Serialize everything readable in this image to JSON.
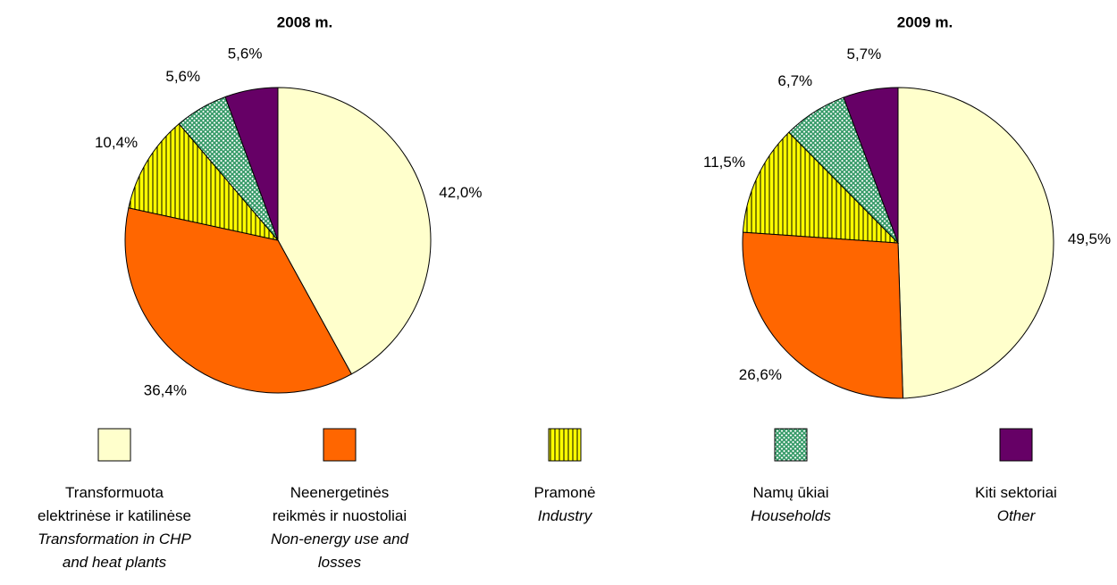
{
  "chart_data": [
    {
      "type": "pie",
      "title": "2008 m.",
      "values": [
        42.0,
        36.4,
        10.4,
        5.6,
        5.6
      ],
      "value_labels": [
        "42,0%",
        "36,4%",
        "10,4%",
        "5,6%",
        "5,6%"
      ]
    },
    {
      "type": "pie",
      "title": "2009 m.",
      "values": [
        49.5,
        26.6,
        11.5,
        6.7,
        5.7
      ],
      "value_labels": [
        "49,5%",
        "26,6%",
        "11,5%",
        "6,7%",
        "5,7%"
      ]
    }
  ],
  "legend": [
    {
      "label": [
        "Transformuota",
        "elektrinėse ir katilinėse"
      ],
      "label_en": [
        "Transformation in CHP",
        "and heat plants"
      ],
      "color": "#ffffcc",
      "pattern": "none"
    },
    {
      "label": [
        "Neenergetinės",
        "reikmės ir nuostoliai"
      ],
      "label_en": [
        "Non-energy use and",
        "losses"
      ],
      "color": "#ff6600",
      "pattern": "none"
    },
    {
      "label": [
        "Pramonė"
      ],
      "label_en": [
        "Industry"
      ],
      "color": "#ffff00",
      "pattern": "vertical"
    },
    {
      "label": [
        "Namų ūkiai"
      ],
      "label_en": [
        "Households"
      ],
      "color": "#339966",
      "pattern": "crosshatch"
    },
    {
      "label": [
        "Kiti sektoriai"
      ],
      "label_en": [
        "Other"
      ],
      "color": "#660066",
      "pattern": "none"
    }
  ]
}
